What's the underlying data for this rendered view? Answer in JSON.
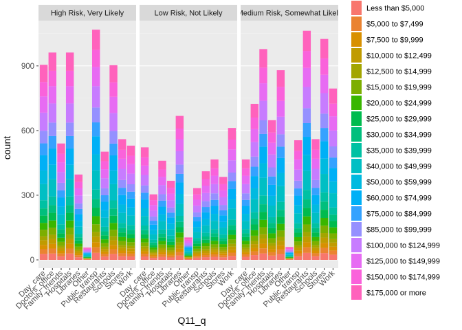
{
  "chart_data": {
    "type": "bar",
    "stacked": true,
    "xlabel": "Q11_q",
    "ylabel": "count",
    "ylim": [
      0,
      1110
    ],
    "y_ticks": [
      0,
      300,
      600,
      900
    ],
    "grid": true,
    "legend_position": "right",
    "categories": [
      "Day_care",
      "Doctors_office",
      "Family_friends",
      "Hospitals",
      "Libraries",
      "Other",
      "Public_transp",
      "Restaurants",
      "Schools",
      "Stores",
      "Work"
    ],
    "facets": [
      {
        "title": "High Risk, Very Likely",
        "totals": [
          905,
          962,
          540,
          962,
          396,
          57,
          1068,
          502,
          903,
          560,
          530
        ]
      },
      {
        "title": "Low Risk, Not Likely",
        "totals": [
          522,
          304,
          460,
          367,
          668,
          104,
          333,
          411,
          466,
          385,
          612
        ]
      },
      {
        "title": "Medium Risk, Somewhat Likely",
        "totals": [
          466,
          724,
          978,
          648,
          880,
          60,
          555,
          1063,
          560,
          1025,
          795
        ]
      }
    ],
    "series": [
      {
        "name": "Less than $5,000",
        "color": "#F8766D"
      },
      {
        "name": "$5,000 to $7,499",
        "color": "#EA8331"
      },
      {
        "name": "$7,500 to $9,999",
        "color": "#D89000"
      },
      {
        "name": "$10,000 to $12,499",
        "color": "#C09B00"
      },
      {
        "name": "$12,500 to $14,999",
        "color": "#A3A500"
      },
      {
        "name": "$15,000 to $19,999",
        "color": "#7CAE00"
      },
      {
        "name": "$20,000 to $24,999",
        "color": "#39B600"
      },
      {
        "name": "$25,000 to $29,999",
        "color": "#00BB4E"
      },
      {
        "name": "$30,000 to $34,999",
        "color": "#00BF7D"
      },
      {
        "name": "$35,000 to $39,999",
        "color": "#00C1A3"
      },
      {
        "name": "$40,000 to $49,999",
        "color": "#00BFC4"
      },
      {
        "name": "$50,000 to $59,999",
        "color": "#00BAE0"
      },
      {
        "name": "$60,000 to $74,999",
        "color": "#00B0F6"
      },
      {
        "name": "$75,000 to $84,999",
        "color": "#35A2FF"
      },
      {
        "name": "$85,000 to $99,999",
        "color": "#9590FF"
      },
      {
        "name": "$100,000 to $124,999",
        "color": "#C77CFF"
      },
      {
        "name": "$125,000 to $149,999",
        "color": "#E76BF3"
      },
      {
        "name": "$150,000 to $174,999",
        "color": "#FA62DB"
      },
      {
        "name": "$175,000 or more",
        "color": "#FF62BC"
      }
    ],
    "series_shares": [
      0.033,
      0.026,
      0.024,
      0.026,
      0.022,
      0.036,
      0.038,
      0.04,
      0.04,
      0.045,
      0.09,
      0.075,
      0.085,
      0.065,
      0.07,
      0.1,
      0.09,
      0.08,
      0.095
    ]
  }
}
